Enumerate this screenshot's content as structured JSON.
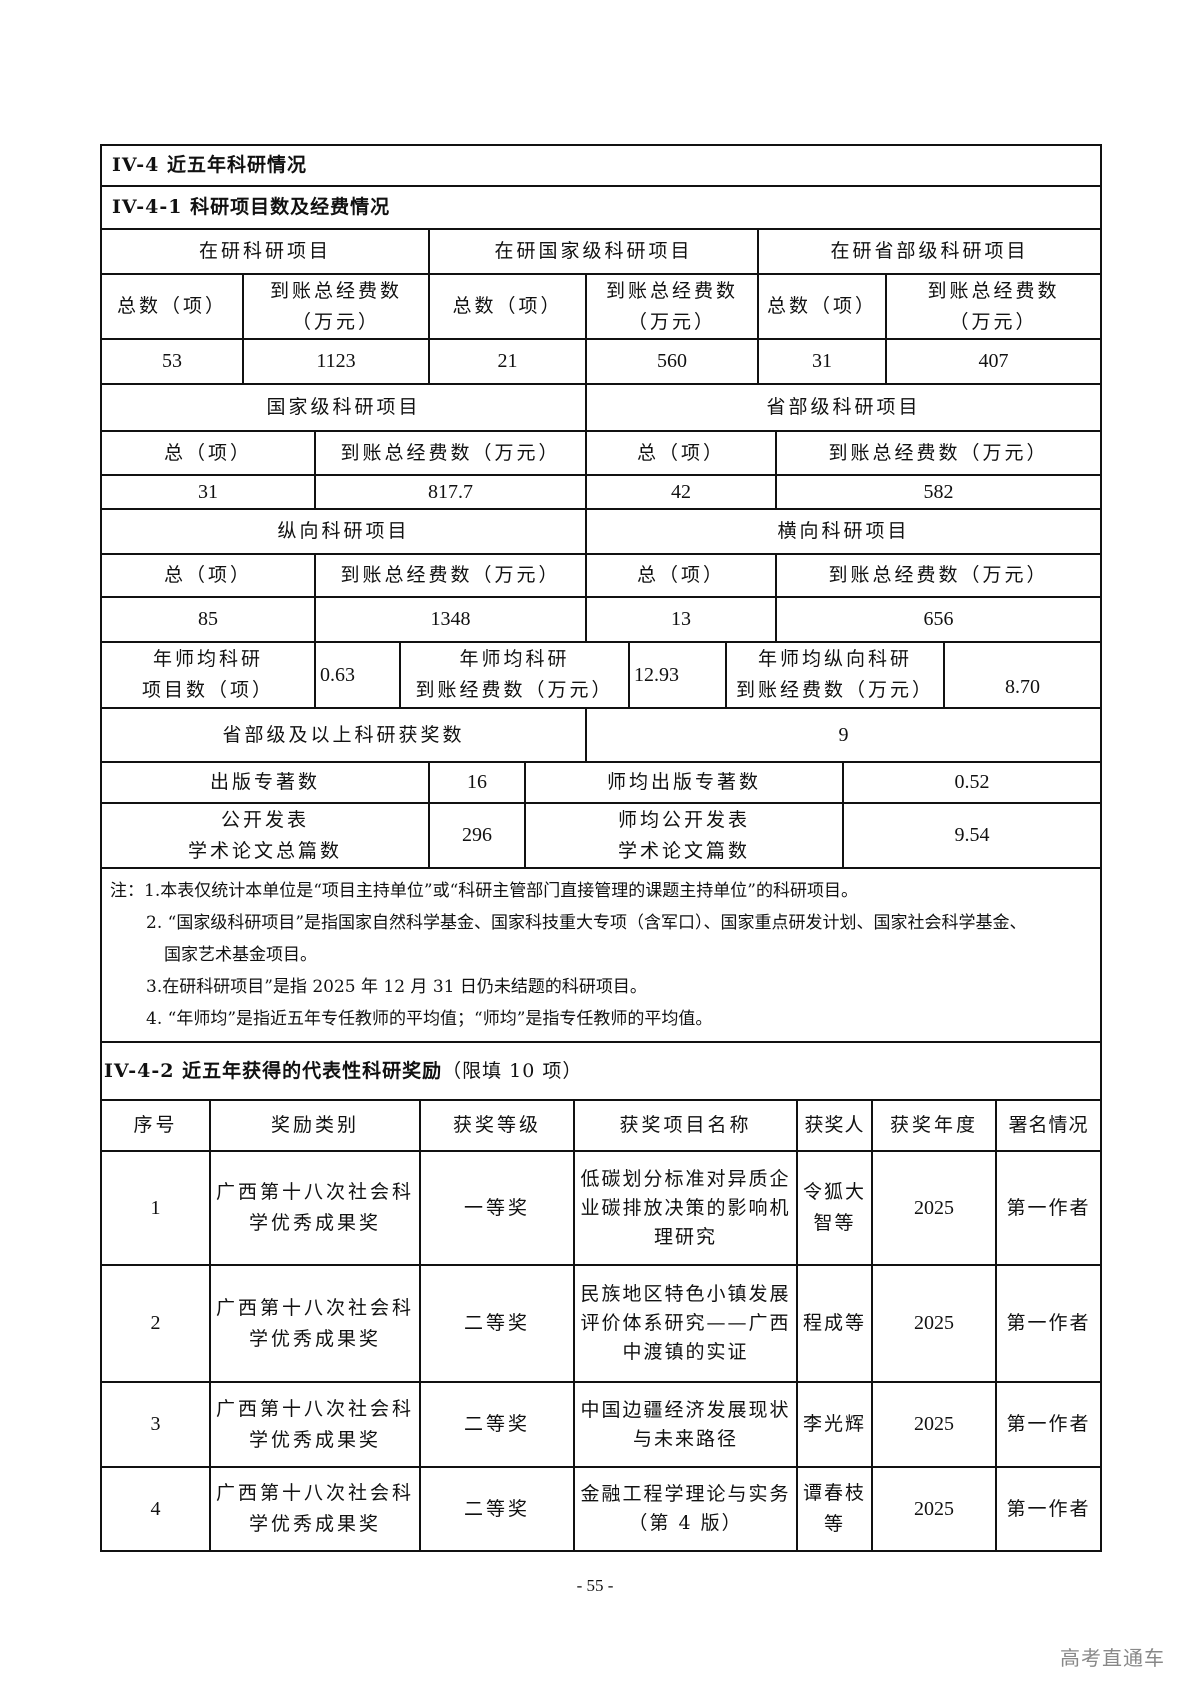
{
  "section_title": "IV-4   近五年科研情况",
  "sub1_title": "IV-4-1 科研项目数及经费情况",
  "current": {
    "groups": [
      "在研科研项目",
      "在研国家级科研项目",
      "在研省部级科研项目"
    ],
    "count_label": "总数（项）",
    "fund_label_1": "到账总经费数",
    "fund_label_2": "（万元）",
    "values": [
      "53",
      "1123",
      "21",
      "560",
      "31",
      "407"
    ]
  },
  "level": {
    "groups": [
      "国家级科研项目",
      "省部级科研项目"
    ],
    "count_label": "总（项）",
    "fund_label": "到账总经费数（万元）",
    "values": [
      "31",
      "817.7",
      "42",
      "582"
    ]
  },
  "direction": {
    "groups": [
      "纵向科研项目",
      "横向科研项目"
    ],
    "count_label": "总（项）",
    "fund_label": "到账总经费数（万元）",
    "values": [
      "85",
      "1348",
      "13",
      "656"
    ]
  },
  "per_teacher": {
    "items": [
      {
        "l1": "年师均科研",
        "l2": "项目数（项）",
        "value": "0.63"
      },
      {
        "l1": "年师均科研",
        "l2": "到账经费数（万元）",
        "value": "12.93"
      },
      {
        "l1": "年师均纵向科研",
        "l2": "到账经费数（万元）",
        "value": "8.70"
      }
    ]
  },
  "awards_count": {
    "label": "省部级及以上科研获奖数",
    "value": "9"
  },
  "books": {
    "label": "出版专著数",
    "value": "16",
    "avg_label": "师均出版专著数",
    "avg_value": "0.52"
  },
  "papers": {
    "l1": "公开发表",
    "l2": "学术论文总篇数",
    "value": "296",
    "avg_l1": "师均公开发表",
    "avg_l2": "学术论文篇数",
    "avg_value": "9.54"
  },
  "notes": [
    "注：1.本表仅统计本单位是“项目主持单位”或“科研主管部门直接管理的课题主持单位”的科研项目。",
    "2. “国家级科研项目”是指国家自然科学基金、国家科技重大专项（含军口）、国家重点研发计划、国家社会科学基金、",
    "国家艺术基金项目。",
    "3.在研科研项目”是指 2025 年 12 月 31 日仍未结题的科研项目。",
    "4. “年师均”是指近五年专任教师的平均值；“师均”是指专任教师的平均值。"
  ],
  "sub2_title": "IV-4-2 近五年获得的代表性科研奖励",
  "sub2_note": "（限填 10 项）",
  "award_table": {
    "headers": [
      "序号",
      "奖励类别",
      "获奖等级",
      "获奖项目名称",
      "获奖人",
      "获奖年度",
      "署名情况"
    ],
    "rows": [
      [
        "1",
        "广西第十八次社会科学优秀成果奖",
        "一等奖",
        "低碳划分标准对异质企业碳排放决策的影响机理研究",
        "令狐大智等",
        "2025",
        "第一作者"
      ],
      [
        "2",
        "广西第十八次社会科学优秀成果奖",
        "二等奖",
        "民族地区特色小镇发展评价体系研究——广西中渡镇的实证",
        "程成等",
        "2025",
        "第一作者"
      ],
      [
        "3",
        "广西第十八次社会科学优秀成果奖",
        "二等奖",
        "中国边疆经济发展现状与未来路径",
        "李光辉",
        "2025",
        "第一作者"
      ],
      [
        "4",
        "广西第十八次社会科学优秀成果奖",
        "二等奖",
        "金融工程学理论与实务（第 4 版）",
        "谭春枝等",
        "2025",
        "第一作者"
      ]
    ]
  },
  "page_number": "- 55 -",
  "watermark": "高考直通车"
}
